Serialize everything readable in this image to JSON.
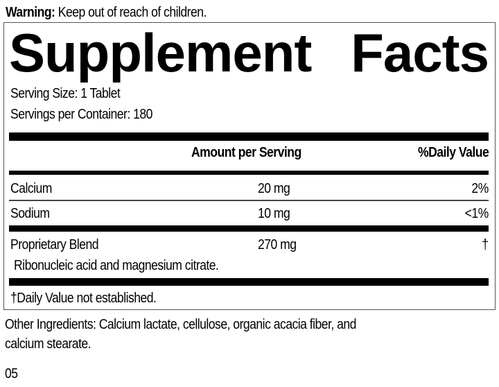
{
  "warning": {
    "label": "Warning:",
    "text": " Keep out of reach of children."
  },
  "title": {
    "word1": "Supplement",
    "word2": "Facts"
  },
  "serving_size": "Serving Size: 1 Tablet",
  "servings_per_container": "Servings per Container: 180",
  "headers": {
    "amount": "Amount per Serving",
    "daily_value": "%Daily Value"
  },
  "rows": [
    {
      "name": "Calcium",
      "amount": "20 mg",
      "dv": "2%"
    },
    {
      "name": "Sodium",
      "amount": "10 mg",
      "dv": "<1%"
    },
    {
      "name": "Proprietary Blend",
      "amount": "270 mg",
      "dv": "†"
    }
  ],
  "blend_ingredients": "Ribonucleic acid and magnesium citrate.",
  "footnote": "†Daily Value not established.",
  "other_ingredients": {
    "line1": "Other Ingredients: Calcium lactate, cellulose, organic acacia fiber, and",
    "line2": "calcium stearate."
  },
  "code": "05"
}
